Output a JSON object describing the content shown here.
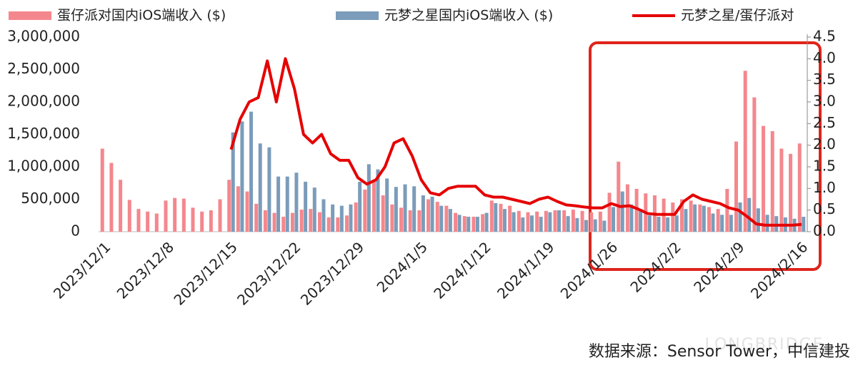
{
  "chart_data": {
    "type": "bar",
    "categories": [
      "2023/12/1",
      null,
      null,
      null,
      null,
      null,
      null,
      "2023/12/8",
      null,
      null,
      null,
      null,
      null,
      null,
      "2023/12/15",
      null,
      null,
      null,
      null,
      null,
      null,
      "2023/12/22",
      null,
      null,
      null,
      null,
      null,
      null,
      "2023/12/29",
      null,
      null,
      null,
      null,
      null,
      null,
      "2024/1/5",
      null,
      null,
      null,
      null,
      null,
      null,
      "2024/1/12",
      null,
      null,
      null,
      null,
      null,
      null,
      "2024/1/19",
      null,
      null,
      null,
      null,
      null,
      null,
      "2024/1/26",
      null,
      null,
      null,
      null,
      null,
      null,
      "2024/2/2",
      null,
      null,
      null,
      null,
      null,
      null,
      "2024/2/9",
      null,
      null,
      null,
      null,
      null,
      null,
      "2024/2/16"
    ],
    "series": [
      {
        "name": "蛋仔派对国内iOS端收入 ($)",
        "color": "#f4878d",
        "values": [
          1280000,
          1060000,
          800000,
          490000,
          350000,
          310000,
          280000,
          480000,
          520000,
          510000,
          370000,
          310000,
          330000,
          500000,
          800000,
          700000,
          620000,
          430000,
          330000,
          290000,
          230000,
          290000,
          340000,
          350000,
          300000,
          220000,
          220000,
          250000,
          450000,
          650000,
          800000,
          560000,
          420000,
          370000,
          330000,
          330000,
          500000,
          460000,
          400000,
          290000,
          240000,
          230000,
          270000,
          480000,
          430000,
          400000,
          320000,
          300000,
          310000,
          320000,
          330000,
          330000,
          340000,
          320000,
          300000,
          310000,
          600000,
          1080000,
          730000,
          660000,
          590000,
          560000,
          510000,
          450000,
          500000,
          480000,
          420000,
          380000,
          350000,
          660000,
          1390000,
          2480000,
          2070000,
          1630000,
          1550000,
          1280000,
          1200000,
          1360000
        ]
      },
      {
        "name": "元梦之星国内iOS端收入 ($)",
        "color": "#7b9cba",
        "values": [
          null,
          null,
          null,
          null,
          null,
          null,
          null,
          null,
          null,
          null,
          null,
          null,
          null,
          null,
          1530000,
          1700000,
          1850000,
          1360000,
          1300000,
          850000,
          850000,
          910000,
          770000,
          680000,
          500000,
          420000,
          400000,
          420000,
          770000,
          1040000,
          960000,
          820000,
          690000,
          730000,
          700000,
          560000,
          540000,
          400000,
          350000,
          260000,
          230000,
          230000,
          290000,
          440000,
          350000,
          300000,
          220000,
          250000,
          230000,
          300000,
          330000,
          240000,
          210000,
          180000,
          190000,
          170000,
          380000,
          620000,
          420000,
          350000,
          250000,
          230000,
          220000,
          250000,
          350000,
          420000,
          400000,
          280000,
          260000,
          260000,
          450000,
          520000,
          360000,
          260000,
          240000,
          220000,
          200000,
          230000
        ]
      },
      {
        "name": "元梦之星/蛋仔派对",
        "color": "#e50000",
        "type": "line",
        "axis": "y2",
        "values": [
          null,
          null,
          null,
          null,
          null,
          null,
          null,
          null,
          null,
          null,
          null,
          null,
          null,
          null,
          1.9,
          2.6,
          3.0,
          3.1,
          3.95,
          3.0,
          4.0,
          3.3,
          2.25,
          2.05,
          2.25,
          1.8,
          1.65,
          1.65,
          1.25,
          1.1,
          1.2,
          1.5,
          2.05,
          2.15,
          1.75,
          1.2,
          0.9,
          0.85,
          1.0,
          1.05,
          1.05,
          1.05,
          0.85,
          0.8,
          0.8,
          0.75,
          0.7,
          0.65,
          0.75,
          0.8,
          0.7,
          0.62,
          0.6,
          0.57,
          0.55,
          0.55,
          0.65,
          0.58,
          0.6,
          0.52,
          0.42,
          0.4,
          0.4,
          0.4,
          0.7,
          0.85,
          0.75,
          0.7,
          0.65,
          0.55,
          0.5,
          0.35,
          0.18,
          0.15,
          0.15,
          0.15,
          0.15,
          0.17
        ]
      }
    ],
    "ylim": [
      0,
      3000000
    ],
    "yticks": [
      0,
      {
        "value": 500000,
        "label": "500,000"
      },
      {
        "value": 1000000,
        "label": "1,000,000"
      },
      {
        "value": 1500000,
        "label": "1,500,000"
      },
      {
        "value": 2000000,
        "label": "2,000,000"
      },
      {
        "value": 2500000,
        "label": "2,500,000"
      },
      {
        "value": 3000000,
        "label": "3,000,000"
      }
    ],
    "y2lim": [
      0,
      4.5
    ],
    "y2ticks": [
      {
        "value": 0,
        "label": "0.0"
      },
      0.5,
      {
        "value": 1,
        "label": "1.0"
      },
      1.5,
      {
        "value": 2,
        "label": "2.0"
      },
      2.5,
      {
        "value": 3,
        "label": "3.0"
      },
      3.5,
      {
        "value": 4,
        "label": "4.0"
      },
      4.5
    ],
    "source": "数据来源：Sensor Tower，中信建投",
    "watermark": "LONGBRIDGE"
  }
}
